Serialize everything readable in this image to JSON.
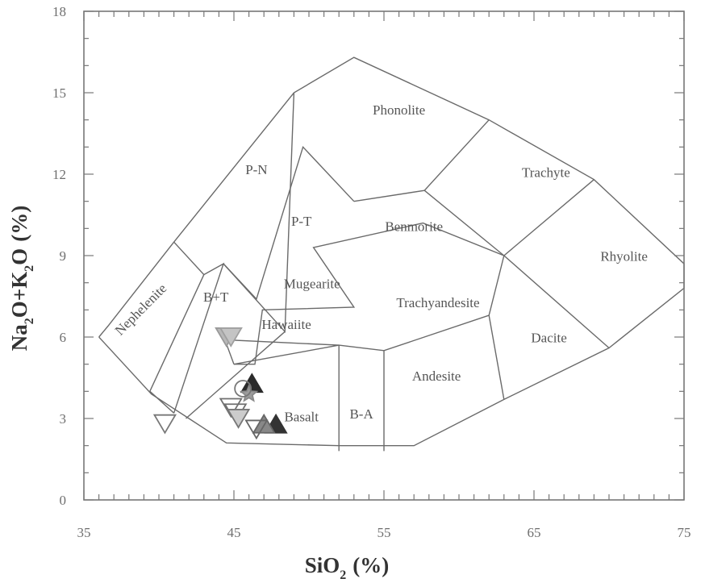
{
  "chart_data": {
    "type": "scatter",
    "title": "",
    "xlabel": "SiO",
    "xlabel_sub": "2",
    "xlabel_unit": "(%)",
    "ylabel_parts": [
      "Na",
      "2",
      "O+K",
      "2",
      "O",
      "(%)"
    ],
    "xlim": [
      35,
      75
    ],
    "ylim": [
      0,
      18
    ],
    "x_ticks": [
      "35",
      "45",
      "55",
      "65",
      "75"
    ],
    "y_ticks": [
      "0",
      "3",
      "6",
      "9",
      "12",
      "15",
      "18"
    ],
    "x_tick_values": [
      35,
      45,
      55,
      65,
      75
    ],
    "y_tick_values": [
      0,
      3,
      6,
      9,
      12,
      15,
      18
    ],
    "grid": false,
    "field_boundaries": [
      [
        [
          36.0,
          6.0
        ],
        [
          36.6,
          6.4
        ],
        [
          41.0,
          9.5
        ],
        [
          49.0,
          15.0
        ],
        [
          53.0,
          16.3
        ],
        [
          62.0,
          14.0
        ],
        [
          69.0,
          11.8
        ],
        [
          75.0,
          8.7
        ],
        [
          75.0,
          7.8
        ],
        [
          70.0,
          5.6
        ],
        [
          63.0,
          3.7
        ],
        [
          57.0,
          2.0
        ],
        [
          52.0,
          2.0
        ],
        [
          44.5,
          2.1
        ],
        [
          42.0,
          3.0
        ],
        [
          39.5,
          3.9
        ],
        [
          36.0,
          6.0
        ]
      ],
      [
        [
          39.4,
          4.0
        ],
        [
          41.0,
          3.2
        ]
      ],
      [
        [
          41.0,
          9.5
        ],
        [
          43.0,
          8.3
        ],
        [
          39.4,
          4.0
        ]
      ],
      [
        [
          43.0,
          8.3
        ],
        [
          44.3,
          8.7
        ],
        [
          41.0,
          3.2
        ]
      ],
      [
        [
          44.3,
          8.7
        ],
        [
          48.4,
          6.2
        ],
        [
          49.0,
          15.0
        ]
      ],
      [
        [
          44.3,
          8.7
        ],
        [
          46.5,
          7.4
        ],
        [
          49.6,
          13.0
        ],
        [
          53.0,
          11.0
        ],
        [
          49.6,
          13.0
        ]
      ],
      [
        [
          53.0,
          11.0
        ],
        [
          57.7,
          11.4
        ],
        [
          62.0,
          14.0
        ]
      ],
      [
        [
          57.7,
          11.4
        ],
        [
          63.0,
          9.0
        ],
        [
          69.0,
          11.8
        ]
      ],
      [
        [
          48.4,
          6.2
        ],
        [
          41.8,
          3.0
        ]
      ],
      [
        [
          45.0,
          5.0
        ],
        [
          46.4,
          5.0
        ],
        [
          46.9,
          7.0
        ],
        [
          53.0,
          7.1
        ],
        [
          50.3,
          9.3
        ],
        [
          57.6,
          10.2
        ],
        [
          63.0,
          9.0
        ],
        [
          70.0,
          5.6
        ]
      ],
      [
        [
          45.0,
          5.0
        ],
        [
          44.4,
          5.9
        ],
        [
          52.0,
          5.7
        ],
        [
          55.0,
          5.5
        ],
        [
          62.0,
          6.8
        ],
        [
          63.0,
          9.0
        ]
      ],
      [
        [
          52.0,
          5.7
        ],
        [
          52.0,
          1.8
        ]
      ],
      [
        [
          55.0,
          5.5
        ],
        [
          55.0,
          1.8
        ]
      ],
      [
        [
          62.0,
          6.8
        ],
        [
          63.0,
          3.7
        ]
      ],
      [
        [
          45.0,
          5.0
        ],
        [
          52.0,
          5.7
        ]
      ]
    ],
    "field_labels": [
      {
        "text": "Phonolite",
        "x": 56.0,
        "y": 14.2,
        "rotate": 0
      },
      {
        "text": "Trachyte",
        "x": 65.8,
        "y": 11.9,
        "rotate": 0
      },
      {
        "text": "P-N",
        "x": 46.5,
        "y": 12.0,
        "rotate": 0
      },
      {
        "text": "P-T",
        "x": 49.5,
        "y": 10.1,
        "rotate": 0
      },
      {
        "text": "Benmorite",
        "x": 57.0,
        "y": 9.9,
        "rotate": 0
      },
      {
        "text": "Rhyolite",
        "x": 71.0,
        "y": 8.8,
        "rotate": 0
      },
      {
        "text": "Nephelenite",
        "x": 39.0,
        "y": 6.9,
        "rotate": -45
      },
      {
        "text": "B+T",
        "x": 43.8,
        "y": 7.3,
        "rotate": 0
      },
      {
        "text": "Mugearite",
        "x": 50.2,
        "y": 7.8,
        "rotate": 0
      },
      {
        "text": "Trachyandesite",
        "x": 58.6,
        "y": 7.1,
        "rotate": 0
      },
      {
        "text": "Hawaiite",
        "x": 48.5,
        "y": 6.3,
        "rotate": 0
      },
      {
        "text": "Dacite",
        "x": 66.0,
        "y": 5.8,
        "rotate": 0
      },
      {
        "text": "Andesite",
        "x": 58.5,
        "y": 4.4,
        "rotate": 0
      },
      {
        "text": "B-A",
        "x": 53.5,
        "y": 3.0,
        "rotate": 0
      },
      {
        "text": "Basalt",
        "x": 49.5,
        "y": 2.9,
        "rotate": 0
      }
    ],
    "points": [
      {
        "x": 44.5,
        "y": 6.0,
        "marker": "triangle-down",
        "fill": "#b8b8b8",
        "stroke": "#999999"
      },
      {
        "x": 44.8,
        "y": 6.0,
        "marker": "triangle-down",
        "fill": "#c4c4c4",
        "stroke": "#a0a0a0"
      },
      {
        "x": 46.2,
        "y": 4.3,
        "marker": "triangle-up",
        "fill": "#2b2b2b",
        "stroke": "#2b2b2b"
      },
      {
        "x": 46.0,
        "y": 3.9,
        "marker": "star",
        "fill": "#9c9c9c",
        "stroke": "#8a8a8a"
      },
      {
        "x": 45.6,
        "y": 4.1,
        "marker": "circle-open",
        "fill": "none",
        "stroke": "#777777"
      },
      {
        "x": 44.8,
        "y": 3.4,
        "marker": "triangle-down",
        "fill": "none",
        "stroke": "#707070"
      },
      {
        "x": 45.1,
        "y": 3.2,
        "marker": "triangle-down",
        "fill": "none",
        "stroke": "#707070"
      },
      {
        "x": 45.3,
        "y": 3.0,
        "marker": "triangle-down",
        "fill": "#cccccc",
        "stroke": "#777777"
      },
      {
        "x": 47.8,
        "y": 2.8,
        "marker": "triangle-up",
        "fill": "#333333",
        "stroke": "#333333"
      },
      {
        "x": 47.0,
        "y": 2.8,
        "marker": "triangle-up",
        "fill": "#888888",
        "stroke": "#666666"
      },
      {
        "x": 46.5,
        "y": 2.6,
        "marker": "triangle-down",
        "fill": "none",
        "stroke": "#666666"
      },
      {
        "x": 40.4,
        "y": 2.8,
        "marker": "triangle-down",
        "fill": "none",
        "stroke": "#777777"
      }
    ]
  }
}
